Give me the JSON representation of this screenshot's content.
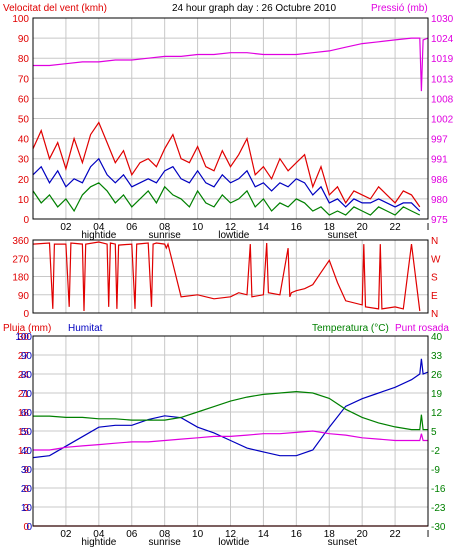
{
  "header": {
    "left_label": "Velocitat del vent (kmh)",
    "center_label": "24 hour graph day : 26 Octubre 2010",
    "right_label": "Pressió (mb)"
  },
  "x_axis": {
    "ticks": [
      "02",
      "04",
      "06",
      "08",
      "10",
      "12",
      "14",
      "16",
      "18",
      "20",
      "22",
      "I"
    ],
    "tide_events": [
      {
        "label": "hightide",
        "hour": 4
      },
      {
        "label": "sunrise",
        "hour": 8
      },
      {
        "label": "lowtide",
        "hour": 12.2
      },
      {
        "label": "sunset",
        "hour": 18.8
      }
    ]
  },
  "wind_panel": {
    "left_ticks": [
      "0",
      "10",
      "20",
      "30",
      "40",
      "50",
      "60",
      "70",
      "80",
      "90",
      "100"
    ],
    "right_ticks": [
      "975",
      "980",
      "986",
      "991",
      "997",
      "1002",
      "1008",
      "1013",
      "1019",
      "1024",
      "1030"
    ]
  },
  "direction_panel": {
    "left_ticks": [
      "0",
      "90",
      "180",
      "270",
      "360"
    ],
    "right_ticks": [
      "N",
      "E",
      "S",
      "W",
      "N"
    ]
  },
  "weather_panel": {
    "left_label": "Pluja (mm)",
    "humidity_label": "Humitat",
    "right_label": "Temperatura (°C)",
    "dewpoint_label": "Punt rosada",
    "left_ticks": [
      "0",
      "3",
      "6",
      "9",
      "12",
      "15",
      "18",
      "21",
      "24",
      "27",
      "30"
    ],
    "humidity_ticks": [
      "0",
      "10",
      "20",
      "30",
      "40",
      "50",
      "60",
      "70",
      "80",
      "90",
      "100"
    ],
    "right_ticks": [
      "-30",
      "-23",
      "-16",
      "-9",
      "-2",
      "5",
      "12",
      "19",
      "26",
      "33",
      "40"
    ]
  },
  "colors": {
    "red": "#e00000",
    "magenta": "#e000e0",
    "blue": "#0000c0",
    "green": "#008000",
    "grid": "#c8c8c8",
    "frame": "#000000"
  },
  "chart_data": [
    {
      "type": "line",
      "x_unit": "hour",
      "xlim": [
        0,
        24
      ],
      "ylim": [
        0,
        100
      ],
      "y2lim": [
        975,
        1030
      ],
      "series": [
        {
          "name": "Velocitat del vent",
          "axis": "left",
          "color": "red",
          "x": [
            0,
            0.5,
            1,
            1.5,
            2,
            2.5,
            3,
            3.5,
            4,
            4.5,
            5,
            5.5,
            6,
            6.5,
            7,
            7.5,
            8,
            8.5,
            9,
            9.5,
            10,
            10.5,
            11,
            11.5,
            12,
            12.5,
            13,
            13.5,
            14,
            14.5,
            15,
            15.5,
            16,
            16.5,
            17,
            17.5,
            18,
            18.5,
            19,
            19.5,
            20,
            20.5,
            21,
            21.5,
            22,
            22.5,
            23,
            23.5
          ],
          "values": [
            35,
            44,
            30,
            38,
            25,
            40,
            28,
            42,
            48,
            38,
            28,
            34,
            22,
            28,
            30,
            26,
            35,
            42,
            30,
            28,
            36,
            26,
            24,
            34,
            26,
            32,
            40,
            22,
            26,
            20,
            30,
            24,
            28,
            32,
            16,
            26,
            12,
            16,
            8,
            14,
            12,
            10,
            16,
            12,
            8,
            14,
            12,
            6
          ]
        },
        {
          "name": "Ràfega",
          "axis": "left",
          "color": "blue",
          "x": [
            0,
            0.5,
            1,
            1.5,
            2,
            2.5,
            3,
            3.5,
            4,
            4.5,
            5,
            5.5,
            6,
            6.5,
            7,
            7.5,
            8,
            8.5,
            9,
            9.5,
            10,
            10.5,
            11,
            11.5,
            12,
            12.5,
            13,
            13.5,
            14,
            14.5,
            15,
            15.5,
            16,
            16.5,
            17,
            17.5,
            18,
            18.5,
            19,
            19.5,
            20,
            20.5,
            21,
            21.5,
            22,
            22.5,
            23,
            23.5
          ],
          "values": [
            22,
            26,
            18,
            24,
            16,
            20,
            18,
            26,
            30,
            22,
            18,
            22,
            16,
            18,
            20,
            18,
            24,
            26,
            20,
            18,
            24,
            18,
            16,
            22,
            18,
            20,
            24,
            16,
            18,
            14,
            18,
            16,
            20,
            18,
            12,
            16,
            8,
            10,
            6,
            10,
            8,
            8,
            10,
            8,
            6,
            8,
            8,
            4
          ]
        },
        {
          "name": "Vent mitjà",
          "axis": "left",
          "color": "green",
          "x": [
            0,
            0.5,
            1,
            1.5,
            2,
            2.5,
            3,
            3.5,
            4,
            4.5,
            5,
            5.5,
            6,
            6.5,
            7,
            7.5,
            8,
            8.5,
            9,
            9.5,
            10,
            10.5,
            11,
            11.5,
            12,
            12.5,
            13,
            13.5,
            14,
            14.5,
            15,
            15.5,
            16,
            16.5,
            17,
            17.5,
            18,
            18.5,
            19,
            19.5,
            20,
            20.5,
            21,
            21.5,
            22,
            22.5,
            23,
            23.5
          ],
          "values": [
            14,
            8,
            12,
            6,
            10,
            4,
            12,
            16,
            18,
            14,
            8,
            12,
            6,
            10,
            14,
            8,
            16,
            12,
            10,
            6,
            14,
            8,
            6,
            12,
            8,
            10,
            14,
            6,
            10,
            4,
            8,
            6,
            10,
            8,
            4,
            6,
            2,
            4,
            2,
            6,
            4,
            2,
            6,
            4,
            2,
            6,
            4,
            2
          ]
        },
        {
          "name": "Pressió",
          "axis": "right",
          "color": "magenta",
          "x": [
            0,
            1,
            2,
            3,
            4,
            5,
            6,
            7,
            8,
            9,
            10,
            11,
            12,
            13,
            14,
            15,
            16,
            17,
            18,
            19,
            20,
            21,
            22,
            23,
            23.5,
            23.6,
            23.7,
            24
          ],
          "values": [
            1017,
            1017,
            1017.5,
            1018,
            1018,
            1018.5,
            1018.5,
            1019,
            1019.5,
            1019.5,
            1020,
            1020,
            1020.5,
            1020.5,
            1020,
            1020,
            1020,
            1020.5,
            1021,
            1022,
            1023,
            1023.5,
            1024,
            1024.5,
            1024.5,
            1010,
            1024,
            1024.5
          ]
        }
      ]
    },
    {
      "type": "line",
      "x_unit": "hour",
      "xlim": [
        0,
        24
      ],
      "ylim": [
        0,
        360
      ],
      "series": [
        {
          "name": "Direcció del vent",
          "color": "red",
          "x": [
            0,
            1,
            1.2,
            1.3,
            2,
            2.2,
            2.3,
            3,
            3.1,
            3.2,
            4,
            4.5,
            4.6,
            4.7,
            5,
            5.1,
            5.2,
            6,
            6.2,
            6.3,
            7,
            7.2,
            7.3,
            7.5,
            8,
            8.1,
            8.2,
            9,
            10,
            11,
            12,
            12.5,
            13,
            13.2,
            13.3,
            14,
            14.2,
            14.3,
            15,
            15.5,
            15.6,
            15.7,
            16,
            16.5,
            17,
            17.5,
            18,
            18.5,
            19,
            20,
            20.1,
            20.2,
            21,
            21.1,
            21.2,
            22,
            22.5,
            23,
            23.5
          ],
          "values": [
            340,
            345,
            20,
            340,
            340,
            30,
            345,
            340,
            10,
            340,
            350,
            340,
            30,
            345,
            340,
            20,
            335,
            340,
            20,
            340,
            345,
            30,
            340,
            345,
            340,
            320,
            340,
            80,
            90,
            70,
            80,
            100,
            90,
            340,
            80,
            90,
            345,
            100,
            90,
            320,
            80,
            100,
            110,
            120,
            140,
            200,
            260,
            150,
            60,
            40,
            340,
            30,
            20,
            340,
            20,
            30,
            20,
            340,
            10
          ]
        }
      ]
    },
    {
      "type": "line",
      "x_unit": "hour",
      "xlim": [
        0,
        24
      ],
      "ylim": [
        0,
        30
      ],
      "y2lim": [
        -30,
        40
      ],
      "series": [
        {
          "name": "Pluja",
          "axis": "left",
          "color": "red",
          "x": [
            0,
            24
          ],
          "values": [
            0,
            0
          ]
        },
        {
          "name": "Humitat",
          "axis": "humidity",
          "color": "blue",
          "x": [
            0,
            1,
            2,
            3,
            4,
            5,
            6,
            7,
            8,
            9,
            10,
            11,
            12,
            13,
            14,
            15,
            16,
            17,
            18,
            19,
            20,
            21,
            22,
            23,
            23.5,
            23.6,
            23.7,
            24
          ],
          "values": [
            36,
            37,
            42,
            47,
            52,
            53,
            53,
            56,
            58,
            57,
            52,
            49,
            45,
            41,
            39,
            37,
            37,
            40,
            52,
            63,
            67,
            70,
            73,
            77,
            80,
            88,
            80,
            81
          ]
        },
        {
          "name": "Temperatura",
          "axis": "right",
          "color": "green",
          "x": [
            0,
            1,
            2,
            3,
            4,
            5,
            6,
            7,
            8,
            9,
            10,
            11,
            12,
            13,
            14,
            15,
            16,
            17,
            18,
            19,
            20,
            21,
            22,
            23,
            23.5,
            23.6,
            23.7,
            24
          ],
          "values": [
            10.5,
            10.5,
            10,
            10,
            9.5,
            9.5,
            9,
            9,
            9,
            10,
            12,
            14,
            16,
            17.5,
            18.5,
            19,
            19.5,
            19,
            17,
            13,
            10,
            8,
            6.5,
            5.5,
            5.5,
            11,
            5.5,
            5.5
          ]
        },
        {
          "name": "Punt rosada",
          "axis": "right",
          "color": "magenta",
          "x": [
            0,
            1,
            2,
            3,
            4,
            5,
            6,
            7,
            8,
            9,
            10,
            11,
            12,
            13,
            14,
            15,
            16,
            17,
            18,
            19,
            20,
            21,
            22,
            23,
            23.5,
            23.6,
            23.7,
            24
          ],
          "values": [
            -2,
            -2,
            -1,
            -0.5,
            0,
            0.5,
            1,
            1,
            1.5,
            2,
            2.5,
            3,
            3,
            3.5,
            4,
            4,
            4.5,
            5,
            4,
            3.5,
            2.5,
            2,
            1.5,
            1.5,
            1.5,
            4,
            1.5,
            1.5
          ]
        }
      ]
    }
  ]
}
